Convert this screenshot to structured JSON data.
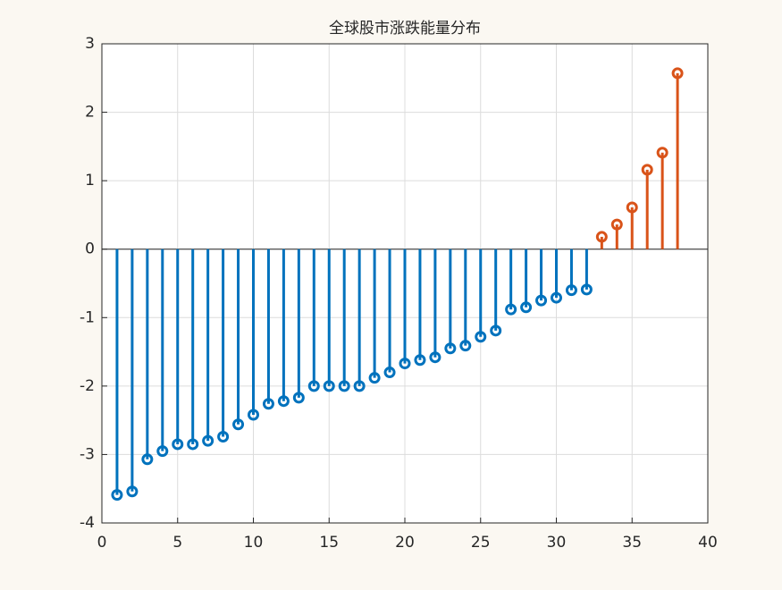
{
  "chart_data": {
    "type": "stem",
    "title": "全球股市涨跌能量分布",
    "series": [
      {
        "color": "#0072bd",
        "x": [
          1,
          2,
          3,
          4,
          5,
          6,
          7,
          8,
          9,
          10,
          11,
          12,
          13,
          14,
          15,
          16,
          17,
          18,
          19,
          20,
          21,
          22,
          23,
          24,
          25,
          26,
          27,
          28,
          29,
          30,
          31,
          32
        ],
        "values": [
          -3.59,
          -3.54,
          -3.07,
          -2.95,
          -2.85,
          -2.85,
          -2.8,
          -2.74,
          -2.56,
          -2.42,
          -2.26,
          -2.22,
          -2.17,
          -2.0,
          -2.0,
          -2.0,
          -2.0,
          -1.88,
          -1.8,
          -1.67,
          -1.62,
          -1.58,
          -1.45,
          -1.41,
          -1.28,
          -1.19,
          -0.88,
          -0.85,
          -0.75,
          -0.71,
          -0.6,
          -0.59
        ]
      },
      {
        "color": "#d95319",
        "x": [
          33,
          34,
          35,
          36,
          37,
          38
        ],
        "values": [
          0.18,
          0.36,
          0.61,
          1.16,
          1.41,
          2.57
        ]
      }
    ],
    "xlim": [
      0,
      40
    ],
    "xticks": [
      0,
      5,
      10,
      15,
      20,
      25,
      30,
      35,
      40
    ],
    "ylim": [
      -4,
      3
    ],
    "yticks": [
      -4,
      -3,
      -2,
      -1,
      0,
      1,
      2,
      3
    ],
    "grid": true
  }
}
